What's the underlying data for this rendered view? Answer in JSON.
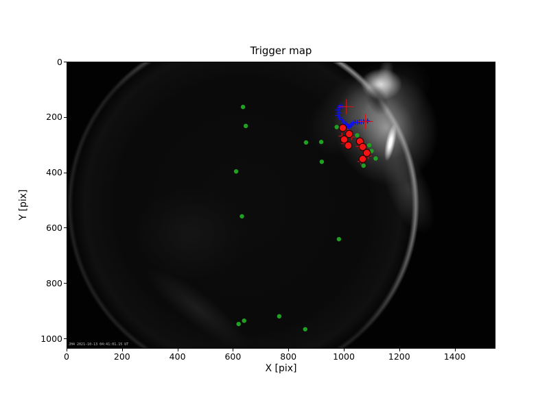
{
  "figure": {
    "background_color": "#ffffff",
    "description": "matplotlib-style scatter plot over a grayscale all-sky camera image"
  },
  "camera_overlay_text": "JH4 2021-10-13 04:41:01.15 UT",
  "chart_data": {
    "type": "scatter",
    "title": "Trigger map",
    "xlabel": "X [pix]",
    "ylabel": "Y [pix]",
    "xlim": [
      0,
      1547
    ],
    "ylim": [
      1037,
      0
    ],
    "y_inverted": true,
    "grid": false,
    "legend": false,
    "x_ticks": [
      0,
      200,
      400,
      600,
      800,
      1000,
      1200,
      1400
    ],
    "y_ticks": [
      0,
      200,
      400,
      600,
      800,
      1000
    ],
    "background_image": "night fisheye sky image, bright moonlit glow at upper right horizon rim",
    "series": [
      {
        "name": "green-dots",
        "marker": "circle",
        "color": "#21a121",
        "size": 8,
        "points": [
          [
            636,
            162
          ],
          [
            646,
            231
          ],
          [
            864,
            291
          ],
          [
            919,
            289
          ],
          [
            921,
            361
          ],
          [
            611,
            396
          ],
          [
            632,
            559
          ],
          [
            983,
            642
          ],
          [
            620,
            950
          ],
          [
            640,
            938
          ],
          [
            767,
            922
          ],
          [
            861,
            969
          ],
          [
            975,
            235
          ],
          [
            1049,
            265
          ],
          [
            1093,
            301
          ],
          [
            1101,
            322
          ],
          [
            1116,
            349
          ],
          [
            1072,
            375
          ]
        ]
      },
      {
        "name": "blue-plus-track",
        "marker": "plus",
        "color": "#0d0df0",
        "size": 9,
        "stroke_width": 3.2,
        "points": [
          [
            988,
            158
          ],
          [
            984,
            163
          ],
          [
            978,
            173
          ],
          [
            996,
            162
          ],
          [
            983,
            183
          ],
          [
            978,
            193
          ],
          [
            985,
            200
          ],
          [
            993,
            208
          ],
          [
            1000,
            216
          ],
          [
            1007,
            223
          ],
          [
            1010,
            226
          ],
          [
            1015,
            231
          ],
          [
            1020,
            235
          ],
          [
            1018,
            233
          ],
          [
            1025,
            230
          ],
          [
            1030,
            225
          ],
          [
            1035,
            220
          ],
          [
            1042,
            218
          ],
          [
            1050,
            218
          ],
          [
            1057,
            216
          ],
          [
            1064,
            216
          ],
          [
            1072,
            215
          ],
          [
            1079,
            213
          ],
          [
            1087,
            213
          ]
        ]
      },
      {
        "name": "red-plus-large",
        "marker": "plus",
        "color": "#e01010",
        "size": 27,
        "stroke_width": 2.6,
        "points": [
          [
            1010,
            161
          ],
          [
            1079,
            215
          ]
        ]
      },
      {
        "name": "red-plus-small",
        "marker": "plus",
        "color": "#d01010",
        "size": 12,
        "stroke_width": 3,
        "points": [
          [
            1007,
            243
          ],
          [
            994,
            268
          ],
          [
            1029,
            271
          ],
          [
            1003,
            295
          ],
          [
            1056,
            305
          ],
          [
            1078,
            320
          ],
          [
            1090,
            340
          ],
          [
            1062,
            360
          ]
        ]
      },
      {
        "name": "red-circles",
        "marker": "circle",
        "color": "#f51414",
        "edge": "#2a0000",
        "edge_width": 3,
        "size": 13,
        "points": [
          [
            997,
            238
          ],
          [
            1020,
            260
          ],
          [
            1002,
            280
          ],
          [
            1017,
            302
          ],
          [
            1059,
            287
          ],
          [
            1069,
            307
          ],
          [
            1084,
            329
          ],
          [
            1069,
            351
          ]
        ]
      }
    ]
  }
}
